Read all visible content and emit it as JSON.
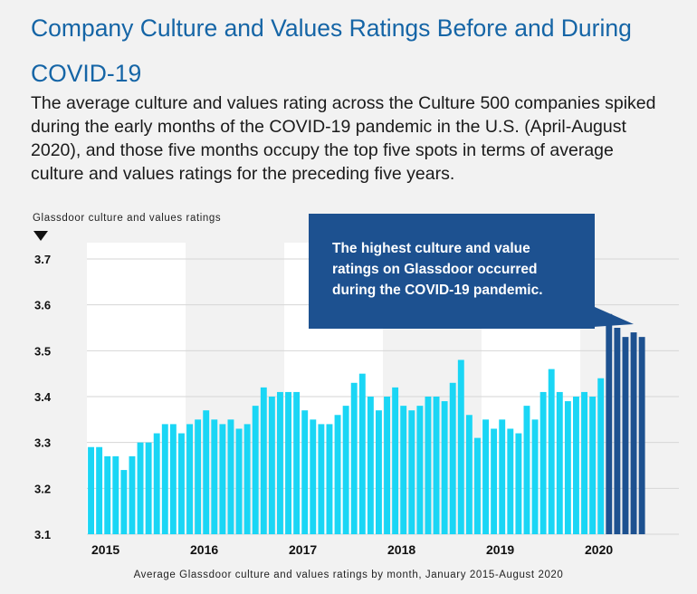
{
  "title": "Company Culture and Values Ratings Before and During COVID-19",
  "subtitle": "The average culture and values rating across the Culture 500 companies spiked during the early months of the COVID-19 pandemic in the U.S. (April-August 2020), and those five months occupy the top five spots in terms of average culture and values ratings for the preceding five years.",
  "annotation": "The highest culture and value ratings on Glassdoor occurred during the COVID-19 pandemic.",
  "colors": {
    "bar": "#1ad6f5",
    "covid_bar": "#1d5190",
    "band": "#ffffff",
    "background": "#f2f2f2",
    "title": "#1565a6"
  },
  "chart_data": {
    "type": "bar",
    "ylabel": "Glassdoor culture and values ratings",
    "xlabel": "Average Glassdoor culture and values ratings by month, January 2015-August 2020",
    "ylim": [
      3.1,
      3.7
    ],
    "yticks": [
      "3.1",
      "3.2",
      "3.3",
      "3.4",
      "3.5",
      "3.6",
      "3.7"
    ],
    "x_tick_labels": [
      "2015",
      "2016",
      "2017",
      "2018",
      "2019",
      "2020"
    ],
    "alternating_year_bands": true,
    "grid": true,
    "series": [
      {
        "years": [
          "2015",
          "2016",
          "2017",
          "2018",
          "2019",
          "2020"
        ],
        "values": [
          3.29,
          3.29,
          3.27,
          3.27,
          3.24,
          3.27,
          3.3,
          3.3,
          3.32,
          3.34,
          3.34,
          3.32,
          3.34,
          3.35,
          3.37,
          3.35,
          3.34,
          3.35,
          3.33,
          3.34,
          3.38,
          3.42,
          3.4,
          3.41,
          3.41,
          3.41,
          3.37,
          3.35,
          3.34,
          3.34,
          3.36,
          3.38,
          3.43,
          3.45,
          3.4,
          3.37,
          3.4,
          3.42,
          3.38,
          3.37,
          3.38,
          3.4,
          3.4,
          3.39,
          3.43,
          3.48,
          3.36,
          3.31,
          3.35,
          3.33,
          3.35,
          3.33,
          3.32,
          3.38,
          3.35,
          3.41,
          3.46,
          3.41,
          3.39,
          3.4,
          3.41,
          3.4,
          3.44,
          3.58,
          3.55,
          3.53,
          3.54,
          3.53
        ],
        "covid_highlight_from_index": 63
      }
    ]
  }
}
